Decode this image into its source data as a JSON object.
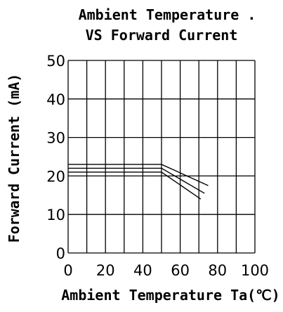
{
  "chart_data": {
    "type": "line",
    "title": "Ambient Temperature .",
    "subtitle": "VS Forward Current",
    "xlabel": "Ambient Temperature Ta(℃)",
    "ylabel": "Forward Current (mA)",
    "xlim": [
      0,
      100
    ],
    "ylim": [
      0,
      50
    ],
    "xticks": [
      0,
      10,
      20,
      30,
      40,
      50,
      60,
      70,
      80,
      90,
      100
    ],
    "xtick_labels": [
      "0",
      "",
      "20",
      "",
      "40",
      "",
      "60",
      "",
      "80",
      "",
      "100"
    ],
    "yticks": [
      0,
      10,
      20,
      30,
      40,
      50
    ],
    "ytick_labels": [
      "0",
      "10",
      "20",
      "30",
      "40",
      "50"
    ],
    "grid": true,
    "line_color": "#000000",
    "series": [
      {
        "x": [
          0,
          50,
          75
        ],
        "values": [
          23,
          23,
          17.5
        ]
      },
      {
        "x": [
          0,
          50,
          73
        ],
        "values": [
          22,
          22,
          15.5
        ]
      },
      {
        "x": [
          0,
          50,
          71
        ],
        "values": [
          21,
          21,
          14
        ]
      }
    ]
  }
}
